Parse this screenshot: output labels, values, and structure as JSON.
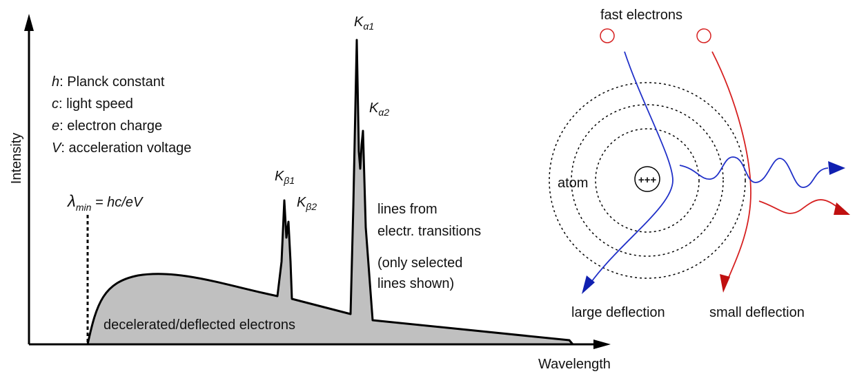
{
  "axes": {
    "y_label": "Intensity",
    "x_label": "Wavelength"
  },
  "legend": [
    {
      "symbol": "h",
      "text": ": Planck constant"
    },
    {
      "symbol": "c",
      "text": ": light speed"
    },
    {
      "symbol": "e",
      "text": ": electron charge"
    },
    {
      "symbol": "V",
      "text": ": acceleration voltage"
    }
  ],
  "formula": {
    "symbol": "λ",
    "sub": "min",
    "rest": " = hc/eV"
  },
  "peaks": [
    {
      "letter": "K",
      "sub": "α1"
    },
    {
      "letter": "K",
      "sub": "α2"
    },
    {
      "letter": "K",
      "sub": "β1"
    },
    {
      "letter": "K",
      "sub": "β2"
    }
  ],
  "notes": {
    "lines": [
      "lines from",
      "electr. transitions"
    ],
    "selected": [
      "(only selected",
      "lines shown)"
    ],
    "continuum": "decelerated/deflected electrons"
  },
  "atom": {
    "title": "fast electrons",
    "label": "atom",
    "large": "large deflection",
    "small": "small deflection"
  }
}
